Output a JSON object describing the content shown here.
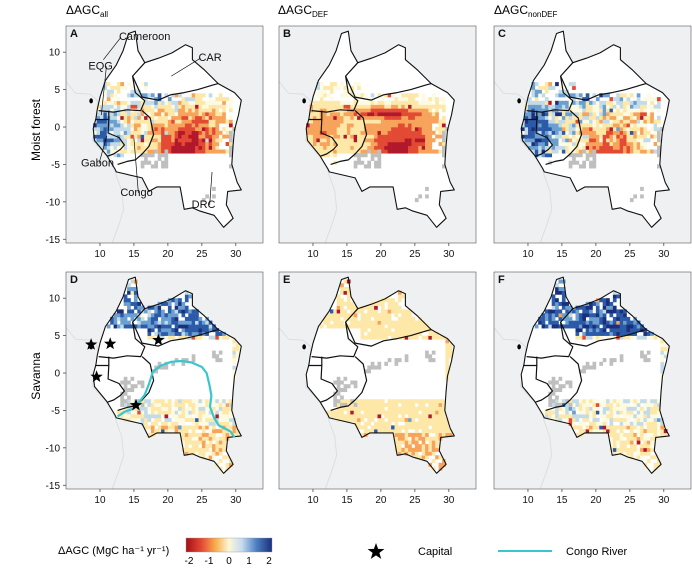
{
  "column_titles": [
    {
      "base": "ΔAGC",
      "sub": "all"
    },
    {
      "base": "ΔAGC",
      "sub": "DEF"
    },
    {
      "base": "ΔAGC",
      "sub": "nonDEF"
    }
  ],
  "row_labels": [
    "Moist forest",
    "Savanna"
  ],
  "panels": [
    {
      "letter": "A",
      "row": 0,
      "col": 0,
      "variant": "all",
      "annotations": true
    },
    {
      "letter": "B",
      "row": 0,
      "col": 1,
      "variant": "def"
    },
    {
      "letter": "C",
      "row": 0,
      "col": 2,
      "variant": "nondef"
    },
    {
      "letter": "D",
      "row": 1,
      "col": 0,
      "variant": "all",
      "capitals": true,
      "river": true
    },
    {
      "letter": "E",
      "row": 1,
      "col": 1,
      "variant": "def"
    },
    {
      "letter": "F",
      "row": 1,
      "col": 2,
      "variant": "nondef"
    }
  ],
  "axes": {
    "x_ticks": [
      10,
      15,
      20,
      25,
      30
    ],
    "y_ticks": [
      10,
      5,
      0,
      -5,
      -10,
      -15
    ],
    "x_range": [
      5,
      34
    ],
    "y_range": [
      -15.5,
      13.5
    ]
  },
  "country_labels": [
    {
      "name": "Cameroon",
      "lon": 12.8,
      "lat": 11.6,
      "leader_to": [
        10.5,
        9.0
      ]
    },
    {
      "name": "CAR",
      "lon": 24.5,
      "lat": 8.8,
      "leader_to": [
        20.5,
        6.8
      ]
    },
    {
      "name": "EQG",
      "lon": 8.3,
      "lat": 7.7,
      "leader_to": [
        10.2,
        1.6
      ]
    },
    {
      "name": "Gabon",
      "lon": 7.2,
      "lat": -5.3,
      "leader_to": [
        11.0,
        -1.2
      ]
    },
    {
      "name": "Congo",
      "lon": 13.0,
      "lat": -9.2,
      "leader_to": [
        15.0,
        -1.5
      ]
    },
    {
      "name": "DRC",
      "lon": 23.5,
      "lat": -10.8,
      "leader_to": [
        26.5,
        -6.0
      ]
    }
  ],
  "capitals": [
    {
      "lon": 8.7,
      "lat": 3.8
    },
    {
      "lon": 11.5,
      "lat": 3.9
    },
    {
      "lon": 9.5,
      "lat": -0.5
    },
    {
      "lon": 15.3,
      "lat": -4.3
    },
    {
      "lon": 18.6,
      "lat": 4.4
    }
  ],
  "legend": {
    "label": "ΔAGC (MgC ha⁻¹ yr⁻¹)",
    "ticks": [
      "-2",
      "-1",
      "0",
      "1",
      "2"
    ],
    "capital_label": "Capital",
    "river_label": "Congo River"
  },
  "colors": {
    "ocean": "#eef0f2",
    "land_outside": "#f4f5f6",
    "basin_fill": "#ffffff",
    "boundary": "#111111",
    "no_data": "#bfbfbf",
    "river": "#39c6cf",
    "scale": [
      "#b2182b",
      "#e34a33",
      "#f7a35c",
      "#fde8a8",
      "#fdfae2",
      "#c3dbe9",
      "#6b9fcf",
      "#2a5aa8",
      "#1b2f7a"
    ]
  }
}
